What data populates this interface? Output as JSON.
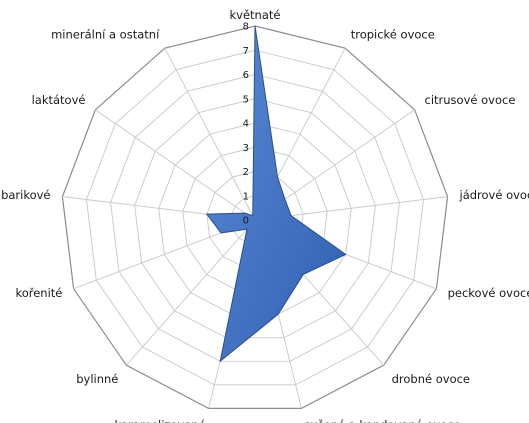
{
  "chart_data": {
    "type": "radar",
    "categories": [
      "květnaté",
      "tropické ovoce",
      "citrusové ovoce",
      "jádrové ovoce",
      "peckové ovoce",
      "drobné ovoce",
      "sušené a kandované  ovoce",
      "karamelizované",
      "bylinné",
      "kořenité",
      "barikové",
      "laktátové",
      "minerální a ostatní"
    ],
    "series": [
      {
        "values": [
          8,
          2,
          1.5,
          1.5,
          4,
          3,
          4,
          6,
          0.5,
          1.5,
          2,
          0.5,
          0.2
        ],
        "color": "#4472C4"
      }
    ],
    "rmin": 0,
    "rmax": 8,
    "ticks": [
      "0",
      "1",
      "2",
      "3",
      "4",
      "5",
      "6",
      "7",
      "8"
    ],
    "grid": true,
    "legend": "none"
  }
}
